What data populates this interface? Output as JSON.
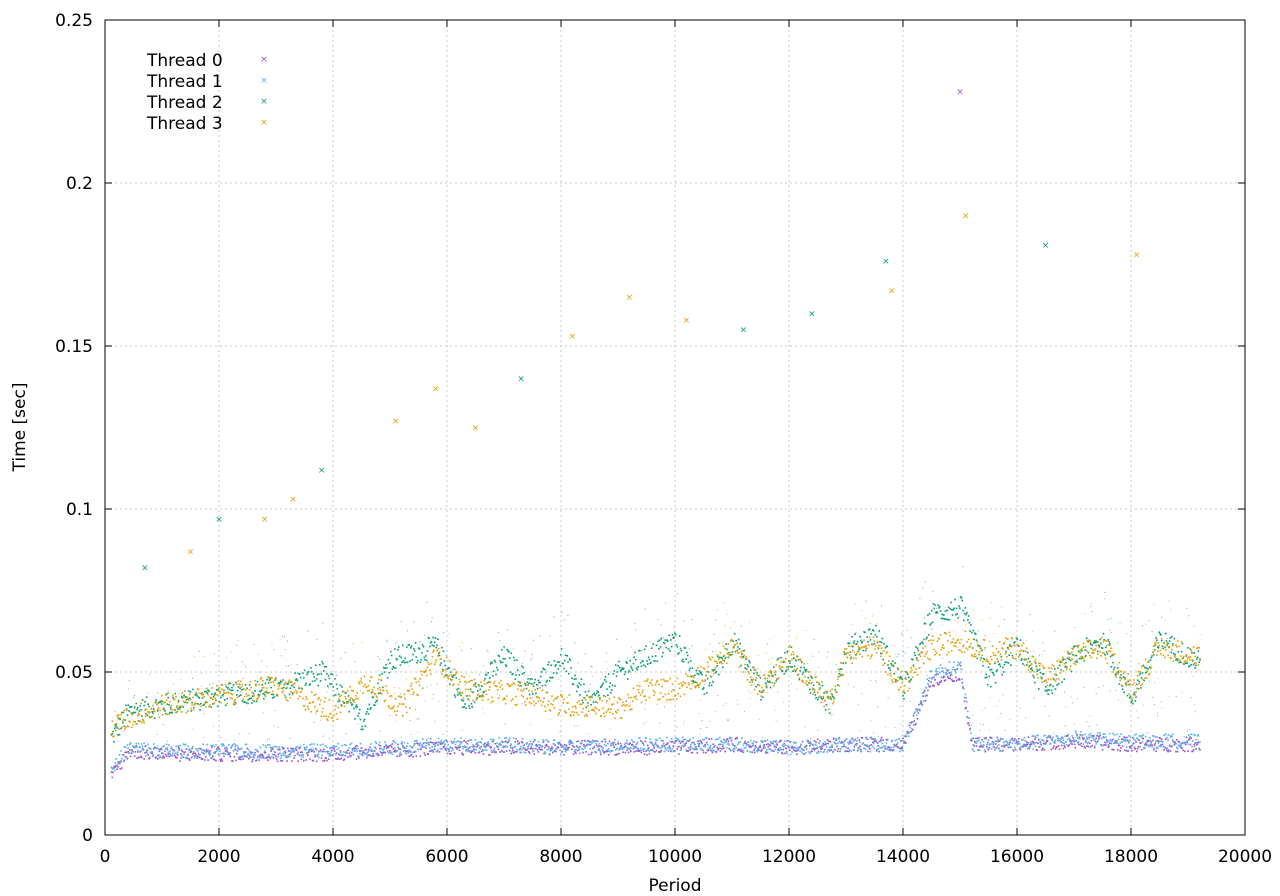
{
  "chart_data": {
    "type": "scatter",
    "title": "",
    "xlabel": "Period",
    "ylabel": "Time [sec]",
    "xlim": [
      0,
      20000
    ],
    "ylim": [
      0,
      0.25
    ],
    "x_ticks": [
      0,
      2000,
      4000,
      6000,
      8000,
      10000,
      12000,
      14000,
      16000,
      18000,
      20000
    ],
    "x_tick_labels": [
      "0",
      "2000",
      "4000",
      "6000",
      "8000",
      "10000",
      "12000",
      "14000",
      "16000",
      "18000",
      "20000"
    ],
    "y_ticks": [
      0,
      0.05,
      0.1,
      0.15,
      0.2,
      0.25
    ],
    "y_tick_labels": [
      "0",
      "0.05",
      "0.1",
      "0.15",
      "0.2",
      "0.25"
    ],
    "grid": true,
    "legend_position": "top-left",
    "series": [
      {
        "name": "Thread 0",
        "color": "#9b4fd4",
        "x": [
          100,
          400,
          1000,
          2000,
          3000,
          4000,
          5000,
          6000,
          7000,
          8000,
          9000,
          10000,
          11000,
          12000,
          13000,
          14000,
          14500,
          15000,
          15200,
          16000,
          17000,
          18000,
          19200
        ],
        "y": [
          0.018,
          0.026,
          0.025,
          0.025,
          0.025,
          0.025,
          0.026,
          0.027,
          0.027,
          0.027,
          0.027,
          0.027,
          0.028,
          0.027,
          0.028,
          0.028,
          0.048,
          0.05,
          0.028,
          0.028,
          0.029,
          0.028,
          0.028
        ]
      },
      {
        "name": "Thread 1",
        "color": "#56b4e9",
        "x": [
          100,
          400,
          1000,
          2000,
          3000,
          4000,
          5000,
          6000,
          7000,
          8000,
          9000,
          10000,
          11000,
          12000,
          13000,
          14000,
          14500,
          15000,
          15200,
          16000,
          17000,
          18000,
          19200
        ],
        "y": [
          0.02,
          0.027,
          0.026,
          0.026,
          0.026,
          0.026,
          0.027,
          0.028,
          0.028,
          0.027,
          0.028,
          0.028,
          0.028,
          0.027,
          0.028,
          0.028,
          0.05,
          0.052,
          0.028,
          0.028,
          0.03,
          0.029,
          0.029
        ]
      },
      {
        "name": "Thread 2",
        "color": "#009e73",
        "x": [
          100,
          400,
          1000,
          2000,
          3000,
          3800,
          4500,
          5000,
          5800,
          6300,
          7000,
          7500,
          8000,
          8500,
          9000,
          9500,
          10000,
          10500,
          11000,
          11500,
          12000,
          12700,
          13000,
          13500,
          14000,
          14500,
          15000,
          15500,
          16000,
          16500,
          17000,
          17500,
          18000,
          18500,
          19200
        ],
        "y": [
          0.03,
          0.038,
          0.04,
          0.043,
          0.045,
          0.05,
          0.035,
          0.054,
          0.058,
          0.04,
          0.055,
          0.045,
          0.055,
          0.04,
          0.05,
          0.055,
          0.06,
          0.045,
          0.06,
          0.045,
          0.055,
          0.04,
          0.057,
          0.062,
          0.045,
          0.068,
          0.07,
          0.048,
          0.058,
          0.045,
          0.055,
          0.06,
          0.042,
          0.06,
          0.053
        ]
      },
      {
        "name": "Thread 3",
        "color": "#e69f00",
        "x": [
          100,
          400,
          1000,
          2000,
          3000,
          4000,
          4600,
          5200,
          5800,
          6300,
          7000,
          7500,
          8000,
          8500,
          9000,
          9500,
          10000,
          10500,
          11000,
          11500,
          12000,
          12700,
          13000,
          13500,
          14000,
          14500,
          15000,
          15500,
          16000,
          16500,
          17000,
          17500,
          18000,
          18500,
          19200
        ],
        "y": [
          0.033,
          0.036,
          0.04,
          0.043,
          0.046,
          0.038,
          0.048,
          0.039,
          0.055,
          0.045,
          0.044,
          0.043,
          0.04,
          0.04,
          0.039,
          0.045,
          0.045,
          0.05,
          0.058,
          0.045,
          0.055,
          0.041,
          0.056,
          0.058,
          0.046,
          0.058,
          0.06,
          0.056,
          0.058,
          0.048,
          0.055,
          0.058,
          0.045,
          0.058,
          0.055
        ]
      }
    ],
    "outliers": [
      {
        "series": "Thread 0",
        "x": 15000,
        "y": 0.228
      },
      {
        "series": "Thread 3",
        "x": 15100,
        "y": 0.19
      },
      {
        "series": "Thread 3",
        "x": 18100,
        "y": 0.178
      },
      {
        "series": "Thread 2",
        "x": 16500,
        "y": 0.181
      },
      {
        "series": "Thread 2",
        "x": 13700,
        "y": 0.176
      },
      {
        "series": "Thread 3",
        "x": 13800,
        "y": 0.167
      },
      {
        "series": "Thread 3",
        "x": 9200,
        "y": 0.165
      },
      {
        "series": "Thread 2",
        "x": 12400,
        "y": 0.16
      },
      {
        "series": "Thread 3",
        "x": 10200,
        "y": 0.158
      },
      {
        "series": "Thread 2",
        "x": 11200,
        "y": 0.155
      },
      {
        "series": "Thread 3",
        "x": 8200,
        "y": 0.153
      },
      {
        "series": "Thread 2",
        "x": 7300,
        "y": 0.14
      },
      {
        "series": "Thread 3",
        "x": 5800,
        "y": 0.137
      },
      {
        "series": "Thread 3",
        "x": 5100,
        "y": 0.127
      },
      {
        "series": "Thread 3",
        "x": 6500,
        "y": 0.125
      },
      {
        "series": "Thread 2",
        "x": 3800,
        "y": 0.112
      },
      {
        "series": "Thread 3",
        "x": 3300,
        "y": 0.103
      },
      {
        "series": "Thread 3",
        "x": 2800,
        "y": 0.097
      },
      {
        "series": "Thread 2",
        "x": 2000,
        "y": 0.097
      },
      {
        "series": "Thread 3",
        "x": 1500,
        "y": 0.087
      },
      {
        "series": "Thread 2",
        "x": 700,
        "y": 0.082
      }
    ]
  }
}
